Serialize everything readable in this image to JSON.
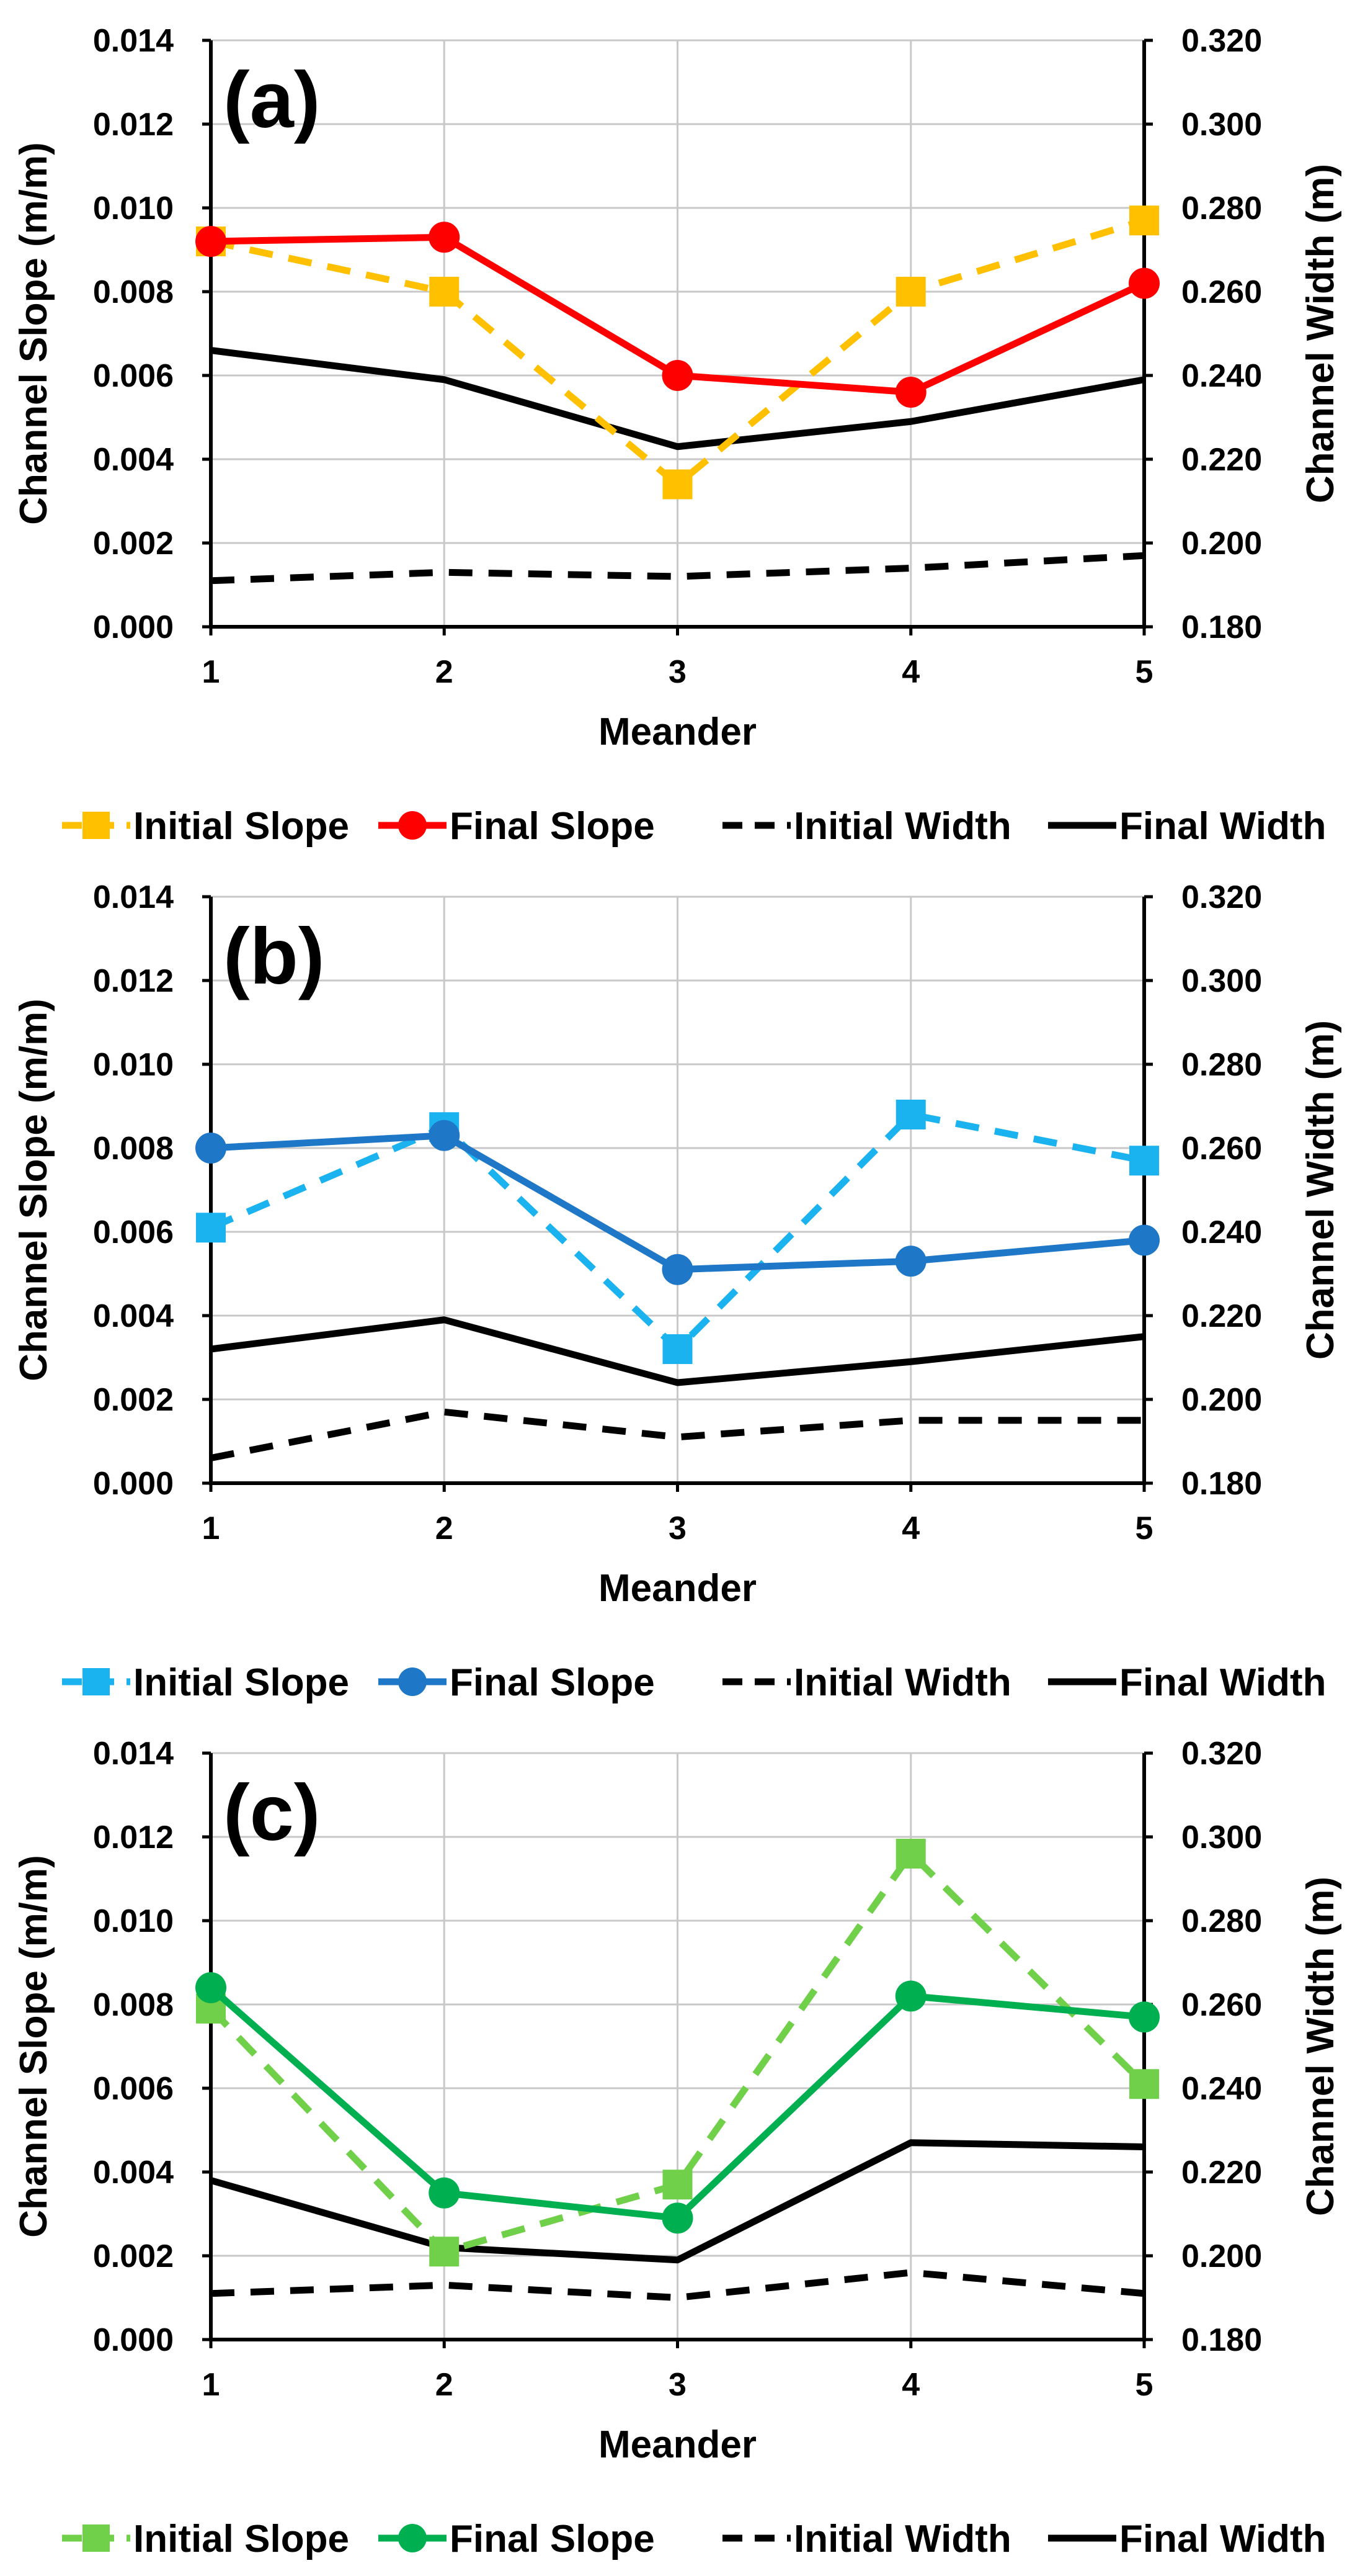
{
  "chart_data": [
    {
      "type": "line",
      "panel_label": "(a)",
      "xlabel": "Meander",
      "ylabel": "Channel Slope (m/m)",
      "y2label": "Channel Width (m)",
      "x": [
        1,
        2,
        3,
        4,
        5
      ],
      "x_tick_labels": [
        "1",
        "2",
        "3",
        "4",
        "5"
      ],
      "ylim": [
        0,
        0.014
      ],
      "y2lim": [
        0.18,
        0.32
      ],
      "y_tick_labels": [
        "0.000",
        "0.002",
        "0.004",
        "0.006",
        "0.008",
        "0.010",
        "0.012",
        "0.014"
      ],
      "y2_tick_labels": [
        "0.180",
        "0.200",
        "0.220",
        "0.240",
        "0.260",
        "0.280",
        "0.300",
        "0.320"
      ],
      "grid": true,
      "legend_position": "bottom",
      "series": [
        {
          "name": "Initial Slope",
          "axis": "left",
          "color": "#FFC000",
          "dash": "dashed",
          "marker": "square",
          "values": [
            0.0092,
            0.008,
            0.0034,
            0.008,
            0.0097
          ]
        },
        {
          "name": "Final Slope",
          "axis": "left",
          "color": "#FF0000",
          "dash": "solid",
          "marker": "circle",
          "values": [
            0.0092,
            0.0093,
            0.006,
            0.0056,
            0.0082
          ]
        },
        {
          "name": "Initial Width",
          "axis": "right",
          "color": "#000000",
          "dash": "dashed",
          "marker": "none",
          "values": [
            0.191,
            0.193,
            0.192,
            0.194,
            0.197
          ]
        },
        {
          "name": "Final Width",
          "axis": "right",
          "color": "#000000",
          "dash": "solid",
          "marker": "none",
          "values": [
            0.246,
            0.239,
            0.223,
            0.229,
            0.239
          ]
        }
      ]
    },
    {
      "type": "line",
      "panel_label": "(b)",
      "xlabel": "Meander",
      "ylabel": "Channel Slope (m/m)",
      "y2label": "Channel Width (m)",
      "x": [
        1,
        2,
        3,
        4,
        5
      ],
      "x_tick_labels": [
        "1",
        "2",
        "3",
        "4",
        "5"
      ],
      "ylim": [
        0,
        0.014
      ],
      "y2lim": [
        0.18,
        0.32
      ],
      "y_tick_labels": [
        "0.000",
        "0.002",
        "0.004",
        "0.006",
        "0.008",
        "0.010",
        "0.012",
        "0.014"
      ],
      "y2_tick_labels": [
        "0.180",
        "0.200",
        "0.220",
        "0.240",
        "0.260",
        "0.280",
        "0.300",
        "0.320"
      ],
      "grid": true,
      "legend_position": "bottom",
      "series": [
        {
          "name": "Initial Slope",
          "axis": "left",
          "color": "#1BB2F0",
          "dash": "dashed",
          "marker": "square",
          "values": [
            0.0061,
            0.0085,
            0.0032,
            0.0088,
            0.0077
          ]
        },
        {
          "name": "Final Slope",
          "axis": "left",
          "color": "#1F77C8",
          "dash": "solid",
          "marker": "circle",
          "values": [
            0.008,
            0.0083,
            0.0051,
            0.0053,
            0.0058
          ]
        },
        {
          "name": "Initial Width",
          "axis": "right",
          "color": "#000000",
          "dash": "dashed",
          "marker": "none",
          "values": [
            0.186,
            0.197,
            0.191,
            0.195,
            0.195
          ]
        },
        {
          "name": "Final Width",
          "axis": "right",
          "color": "#000000",
          "dash": "solid",
          "marker": "none",
          "values": [
            0.212,
            0.219,
            0.204,
            0.209,
            0.215
          ]
        }
      ]
    },
    {
      "type": "line",
      "panel_label": "(c)",
      "xlabel": "Meander",
      "ylabel": "Channel Slope (m/m)",
      "y2label": "Channel Width (m)",
      "x": [
        1,
        2,
        3,
        4,
        5
      ],
      "x_tick_labels": [
        "1",
        "2",
        "3",
        "4",
        "5"
      ],
      "ylim": [
        0,
        0.014
      ],
      "y2lim": [
        0.18,
        0.32
      ],
      "y_tick_labels": [
        "0.000",
        "0.002",
        "0.004",
        "0.006",
        "0.008",
        "0.010",
        "0.012",
        "0.014"
      ],
      "y2_tick_labels": [
        "0.180",
        "0.200",
        "0.220",
        "0.240",
        "0.260",
        "0.280",
        "0.300",
        "0.320"
      ],
      "grid": true,
      "legend_position": "bottom",
      "series": [
        {
          "name": "Initial Slope",
          "axis": "left",
          "color": "#70D04A",
          "dash": "dashed",
          "marker": "square",
          "values": [
            0.0079,
            0.0021,
            0.0037,
            0.0116,
            0.0061
          ]
        },
        {
          "name": "Final Slope",
          "axis": "left",
          "color": "#00B050",
          "dash": "solid",
          "marker": "circle",
          "values": [
            0.0084,
            0.0035,
            0.0029,
            0.0082,
            0.0077
          ]
        },
        {
          "name": "Initial Width",
          "axis": "right",
          "color": "#000000",
          "dash": "dashed",
          "marker": "none",
          "values": [
            0.191,
            0.193,
            0.19,
            0.196,
            0.191
          ]
        },
        {
          "name": "Final Width",
          "axis": "right",
          "color": "#000000",
          "dash": "solid",
          "marker": "none",
          "values": [
            0.218,
            0.202,
            0.199,
            0.227,
            0.226
          ]
        }
      ]
    }
  ]
}
